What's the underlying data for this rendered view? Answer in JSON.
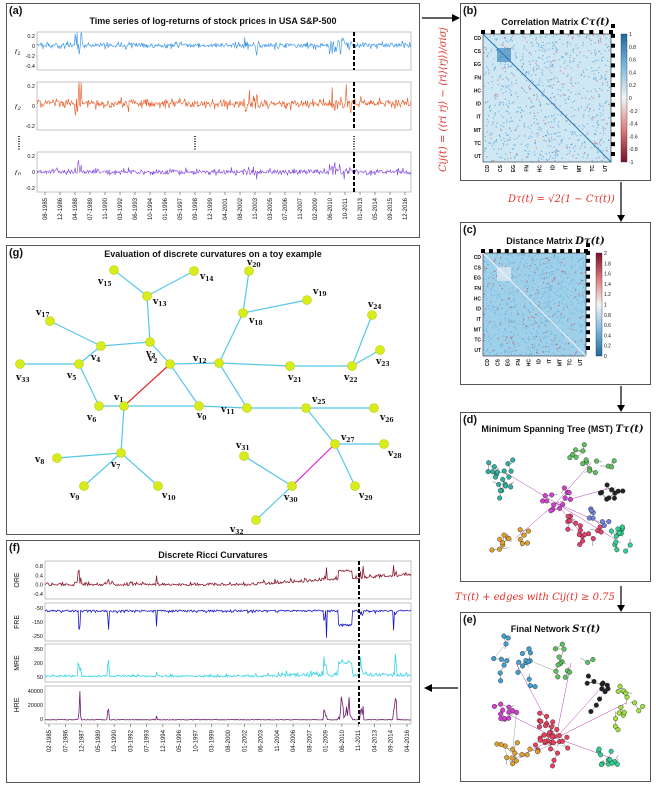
{
  "panels": {
    "a": {
      "label": "(a)",
      "title": "Time series of log-returns of stock prices in USA S&P-500",
      "series_labels": [
        "r₁",
        "r₂",
        "rₙ"
      ],
      "r1_ticks": [
        "0.2",
        "0",
        "-0.2",
        "-0.4"
      ],
      "r2_ticks": [
        "0.2",
        "0",
        "-0.2"
      ],
      "rn_ticks": [
        "0.2",
        "0",
        "-0.2"
      ],
      "x_ticks": [
        "08-1985",
        "12-1986",
        "04-1988",
        "07-1989",
        "11-1990",
        "03-1992",
        "06-1993",
        "10-1994",
        "01-1996",
        "05-1997",
        "09-1998",
        "12-1999",
        "04-2001",
        "08-2002",
        "11-2003",
        "03-2005",
        "07-2006",
        "11-2007",
        "02-2009",
        "06-2010",
        "10-2011",
        "01-2013",
        "05-2014",
        "09-2015",
        "12-2016"
      ]
    },
    "b": {
      "label": "(b)",
      "title": "Correlation Matrix",
      "symbol": "Cτ(t)",
      "y_sectors": [
        "CD",
        "CS",
        "EG",
        "FN",
        "HC",
        "ID",
        "IT",
        "MT",
        "TC",
        "UT"
      ],
      "x_sectors": [
        "CD",
        "CS",
        "EG",
        "FN",
        "HC",
        "ID",
        "IT",
        "MT",
        "TC",
        "UT"
      ],
      "colorbar": [
        "1",
        "0.8",
        "0.6",
        "0.4",
        "0.2",
        "0",
        "-0.2",
        "-0.4",
        "-0.6",
        "-0.8",
        "-1"
      ],
      "formula_side": "Cij(t) = (⟨ri rj⟩ − ⟨ri⟩⟨rj⟩)/σiσj"
    },
    "formula_bc": "Dτ(t) = √2(1 − Cτ(t))",
    "c": {
      "label": "(c)",
      "title": "Distance Matrix",
      "symbol": "Dτ(t)",
      "colorbar": [
        "2",
        "1.8",
        "1.6",
        "1.4",
        "1.2",
        "1",
        "0.8",
        "0.6",
        "0.4",
        "0.2",
        "0"
      ]
    },
    "d": {
      "label": "(d)",
      "title": "Minimum Spanning Tree (MST)",
      "symbol": "Tτ(t)"
    },
    "formula_de": "Tτ(t) + edges with Cij(t) ≥ 0.75",
    "e": {
      "label": "(e)",
      "title": "Final Network",
      "symbol": "Sτ(t)"
    },
    "g": {
      "label": "(g)",
      "title": "Evaluation of discrete curvatures on a toy example",
      "nodes": [
        "v0",
        "v1",
        "v2",
        "v3",
        "v4",
        "v5",
        "v6",
        "v7",
        "v8",
        "v9",
        "v10",
        "v11",
        "v12",
        "v13",
        "v14",
        "v15",
        "v17",
        "v18",
        "v19",
        "v20",
        "v21",
        "v22",
        "v23",
        "v24",
        "v25",
        "v26",
        "v27",
        "v28",
        "v29",
        "v30",
        "v31",
        "v32",
        "v33"
      ]
    },
    "f": {
      "label": "(f)",
      "title": "Discrete Ricci Curvatures",
      "rows": [
        {
          "name": "ORE",
          "ticks": [
            "0.8",
            "0.4",
            "0.0",
            "-0.4"
          ],
          "color": "#8b1a2e"
        },
        {
          "name": "FRE",
          "ticks": [
            "-50",
            "-150",
            "-250"
          ],
          "color": "#1a1acd"
        },
        {
          "name": "MRE",
          "ticks": [
            "350",
            "200",
            "50"
          ],
          "color": "#35d4e6"
        },
        {
          "name": "HRE",
          "ticks": [
            "40000",
            "20000",
            "0"
          ],
          "color": "#6e1a6e"
        }
      ],
      "x_ticks": [
        "02-1985",
        "07-1986",
        "12-1987",
        "05-1989",
        "10-1990",
        "03-1992",
        "07-1993",
        "12-1994",
        "05-1996",
        "10-1997",
        "03-1999",
        "08-2000",
        "01-2002",
        "06-2003",
        "11-2004",
        "04-2006",
        "08-2007",
        "01-2009",
        "06-2010",
        "11-2011",
        "04-2013",
        "09-2014",
        "04-2016"
      ]
    }
  }
}
